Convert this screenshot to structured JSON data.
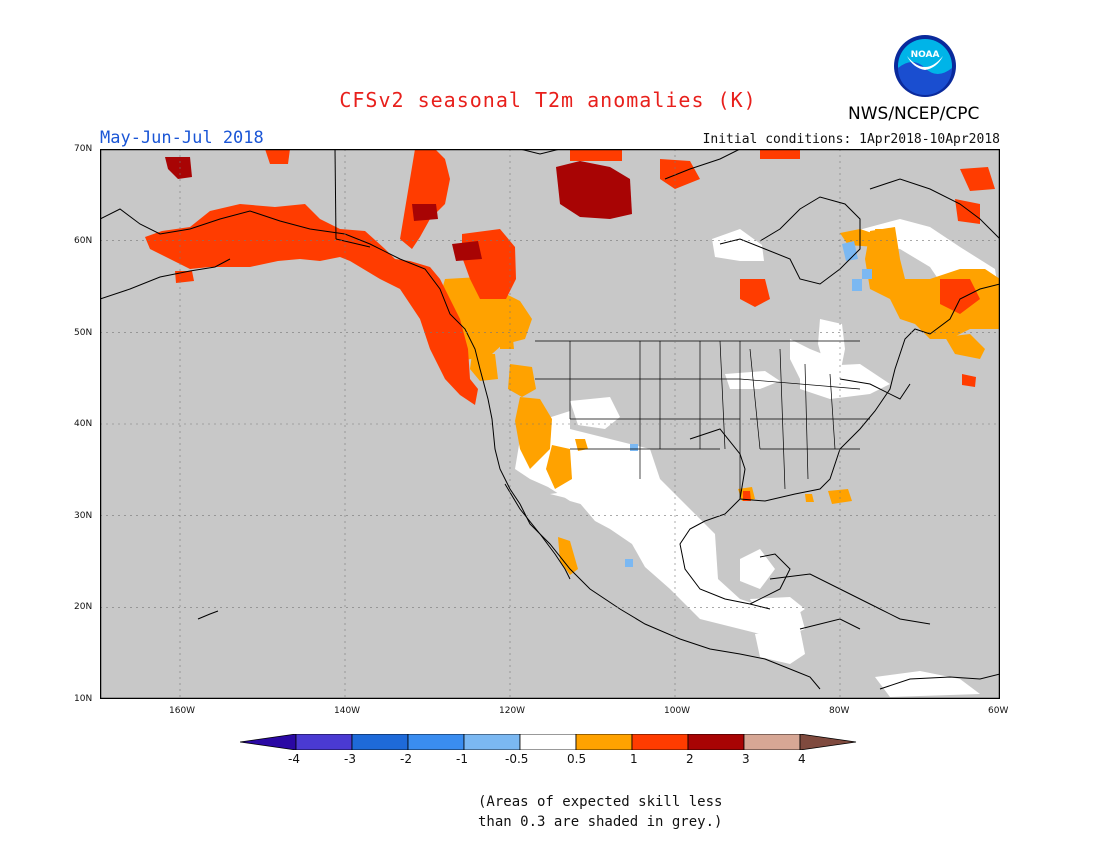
{
  "header": {
    "title": "CFSv2 seasonal T2m anomalies (K)",
    "period": "May-Jun-Jul 2018",
    "initial_conditions": "Initial conditions: 1Apr2018-10Apr2018",
    "agency": "NWS/NCEP/CPC",
    "logo_text": "NOAA"
  },
  "axes": {
    "latitude_ticks": [
      "70N",
      "60N",
      "50N",
      "40N",
      "30N",
      "20N",
      "10N"
    ],
    "longitude_ticks": [
      "160W",
      "140W",
      "120W",
      "100W",
      "80W",
      "60W"
    ]
  },
  "colorbar": {
    "labels": [
      "-4",
      "-3",
      "-2",
      "-1",
      "-0.5",
      "0.5",
      "1",
      "2",
      "3",
      "4"
    ],
    "colors": [
      "#2a08a4",
      "#4a3ad2",
      "#1e6ad9",
      "#3a8df0",
      "#7bb8f2",
      "#ffffff",
      "#ffa200",
      "#ff3c00",
      "#a80404",
      "#d7a795",
      "#7f4a3e"
    ]
  },
  "legend_note": {
    "line1": "(Areas of expected skill less",
    "line2": "than 0.3 are shaded in grey.)"
  },
  "colors": {
    "skill_grey": "#c8c8c8",
    "anomaly_orange": "#ffa200",
    "anomaly_red": "#ff3c00",
    "anomaly_darkred": "#a80404",
    "anomaly_lightblue": "#7bb8f2"
  }
}
